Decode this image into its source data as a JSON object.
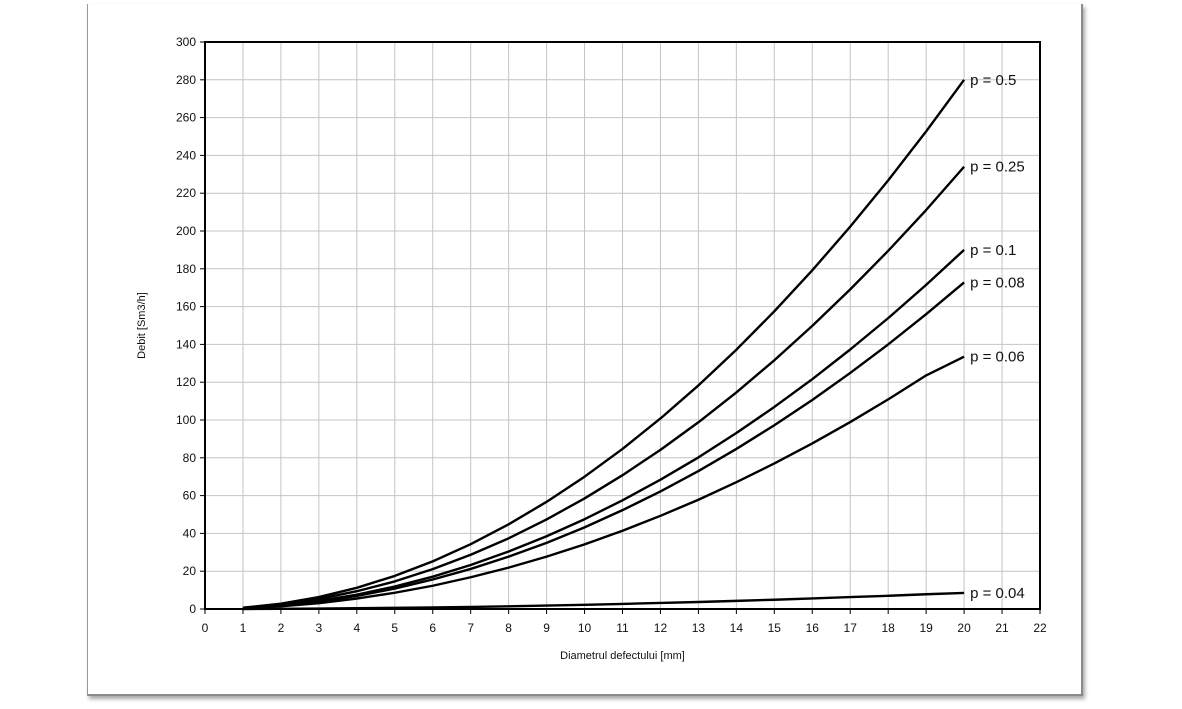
{
  "chart_data": {
    "type": "line",
    "title": "",
    "xlabel": "Diametrul defectului [mm]",
    "ylabel": "Debit [Sm3/h]",
    "xlim": [
      0,
      22
    ],
    "ylim": [
      0,
      300
    ],
    "x_ticks": [
      0,
      1,
      2,
      3,
      4,
      5,
      6,
      7,
      8,
      9,
      10,
      11,
      12,
      13,
      14,
      15,
      16,
      17,
      18,
      19,
      20,
      21,
      22
    ],
    "y_ticks": [
      0,
      20,
      40,
      60,
      80,
      100,
      120,
      140,
      160,
      180,
      200,
      220,
      240,
      260,
      280,
      300
    ],
    "grid": true,
    "legend": "labels at line ends (right)",
    "line_color": "#000000",
    "x": [
      1,
      2,
      3,
      4,
      5,
      6,
      7,
      8,
      9,
      10,
      11,
      12,
      13,
      14,
      15,
      16,
      17,
      18,
      19,
      20
    ],
    "series": [
      {
        "name": "p = 0.5",
        "values": [
          0.7,
          2.8,
          6.3,
          11.2,
          17.5,
          25.2,
          34.3,
          44.8,
          56.7,
          70.0,
          84.7,
          100.8,
          118.3,
          137.2,
          157.5,
          179.2,
          202.3,
          226.8,
          252.7,
          280.0
        ]
      },
      {
        "name": "p = 0.25",
        "values": [
          0.6,
          2.3,
          5.3,
          9.4,
          14.6,
          21.1,
          28.7,
          37.4,
          47.4,
          58.5,
          70.8,
          84.2,
          98.8,
          114.6,
          131.6,
          149.8,
          169.1,
          189.5,
          211.1,
          234.0
        ]
      },
      {
        "name": "p = 0.1",
        "values": [
          0.5,
          1.9,
          4.3,
          7.6,
          11.9,
          17.1,
          23.3,
          30.4,
          38.5,
          47.5,
          57.5,
          68.4,
          80.2,
          93.1,
          106.9,
          121.6,
          137.3,
          153.9,
          171.5,
          190.0
        ]
      },
      {
        "name": "p = 0.08",
        "values": [
          0.4,
          1.7,
          3.9,
          6.9,
          10.8,
          15.6,
          21.2,
          27.7,
          35.0,
          43.2,
          52.3,
          62.2,
          73.0,
          84.7,
          97.2,
          110.6,
          124.9,
          140.0,
          156.0,
          172.8
        ]
      },
      {
        "name": "p = 0.06",
        "values": [
          0.3,
          1.4,
          3.1,
          5.5,
          8.6,
          12.3,
          16.8,
          21.9,
          27.7,
          34.2,
          41.4,
          49.3,
          57.8,
          67.1,
          77.0,
          87.6,
          98.9,
          110.9,
          123.6,
          133.5
        ]
      },
      {
        "name": "p = 0.04",
        "values": [
          0.0,
          0.1,
          0.2,
          0.4,
          0.6,
          0.8,
          1.1,
          1.4,
          1.8,
          2.2,
          2.7,
          3.2,
          3.7,
          4.3,
          4.9,
          5.6,
          6.3,
          7.0,
          7.8,
          8.5
        ]
      }
    ]
  }
}
